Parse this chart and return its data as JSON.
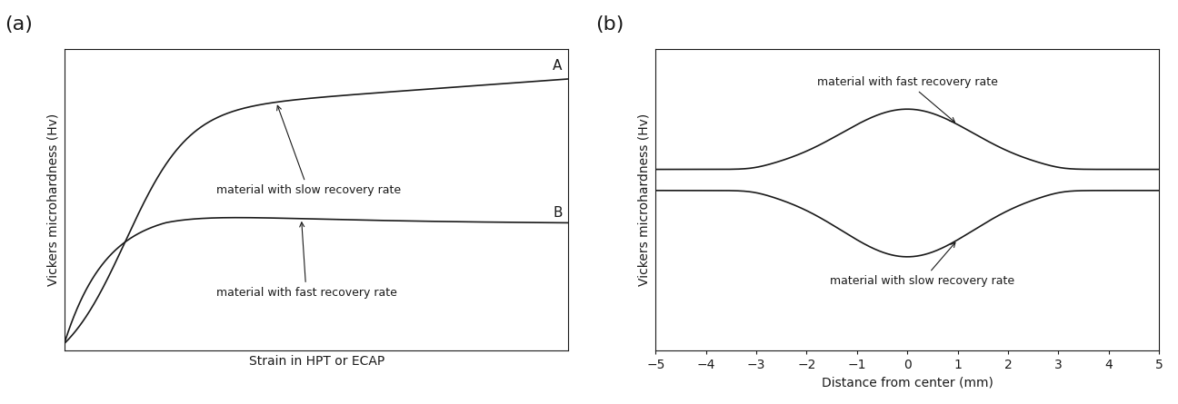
{
  "fig_width": 12.96,
  "fig_height": 4.45,
  "dpi": 100,
  "background_color": "#ffffff",
  "line_color": "#1a1a1a",
  "panel_a": {
    "label": "(a)",
    "xlabel": "Strain in HPT or ECAP",
    "ylabel": "Vickers microhardness (Hv)",
    "annotation_A": "material with slow recovery rate",
    "annotation_B": "material with fast recovery rate"
  },
  "panel_b": {
    "label": "(b)",
    "xlabel": "Distance from center (mm)",
    "ylabel": "Vickers microhardness (Hv)",
    "xlim": [
      -5,
      5
    ],
    "xticks": [
      -5,
      -4,
      -3,
      -2,
      -1,
      0,
      1,
      2,
      3,
      4,
      5
    ],
    "annotation_fast": "material with fast recovery rate",
    "annotation_slow": "material with slow recovery rate"
  }
}
